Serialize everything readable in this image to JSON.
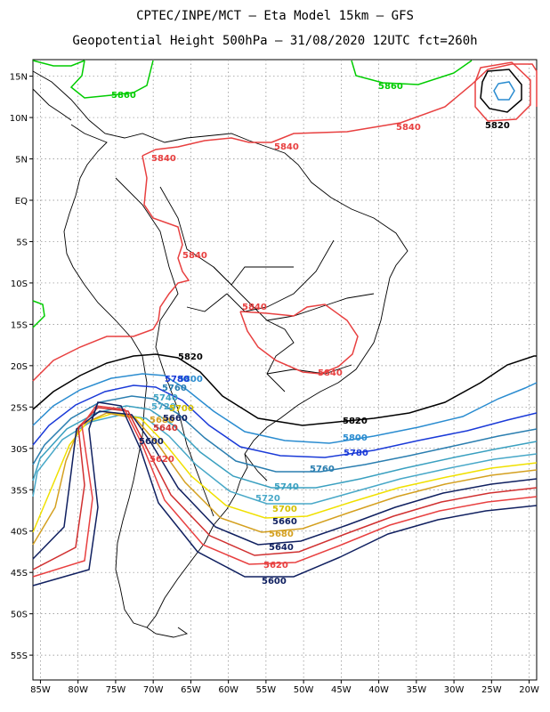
{
  "figure": {
    "title_line1": "CPTEC/INPE/MCT –  Eta Model 15km – GFS",
    "title_line2": "Geopotential Height 500hPa – 31/08/2020 12UTC fct=260h"
  },
  "map_data": {
    "type": "contour-map",
    "variable": "Geopotential Height 500hPa",
    "lon_range": [
      -86,
      -19
    ],
    "lat_range": [
      -58,
      17
    ],
    "lon_ticks": [
      "85W",
      "80W",
      "75W",
      "70W",
      "65W",
      "60W",
      "55W",
      "50W",
      "45W",
      "40W",
      "35W",
      "30W",
      "25W",
      "20W"
    ],
    "lat_ticks": [
      "15N",
      "10N",
      "5N",
      "EQ",
      "5S",
      "10S",
      "15S",
      "20S",
      "25S",
      "30S",
      "35S",
      "40S",
      "45S",
      "50S",
      "55S"
    ],
    "contours": [
      {
        "value": 5860,
        "color": "#00cc00",
        "labels": [
          "5860",
          "5860"
        ]
      },
      {
        "value": 5840,
        "color": "#e84040",
        "labels": [
          "5840",
          "5840",
          "5840",
          "5840",
          "5840",
          "5840"
        ]
      },
      {
        "value": 5820,
        "color": "#000000",
        "labels": [
          "5820",
          "5820",
          "5820"
        ]
      },
      {
        "value": 5800,
        "color": "#2a8cd0",
        "labels": [
          "5800",
          "5800"
        ]
      },
      {
        "value": 5780,
        "color": "#1a3ad8",
        "labels": [
          "5780",
          "5780"
        ]
      },
      {
        "value": 5760,
        "color": "#2a7eb0",
        "labels": [
          "5760",
          "5760"
        ]
      },
      {
        "value": 5740,
        "color": "#3aa0c0",
        "labels": [
          "5740",
          "5740"
        ]
      },
      {
        "value": 5720,
        "color": "#48a8c8",
        "labels": [
          "5720",
          "5720"
        ]
      },
      {
        "value": 5700,
        "color": "#f0e000",
        "labels": [
          "5700",
          "5700"
        ]
      },
      {
        "value": 5680,
        "color": "#d4a020",
        "labels": [
          "5680",
          "5680"
        ]
      },
      {
        "value": 5660,
        "color": "#102060",
        "labels": [
          "5660",
          "5660"
        ]
      },
      {
        "value": 5640,
        "color": "#d03030",
        "labels": [
          "5640",
          "5640"
        ]
      },
      {
        "value": 5620,
        "color": "#e84040",
        "labels": [
          "5620",
          "5620"
        ]
      },
      {
        "value": 5600,
        "color": "#102060",
        "labels": [
          "5600",
          "5600"
        ]
      }
    ]
  }
}
